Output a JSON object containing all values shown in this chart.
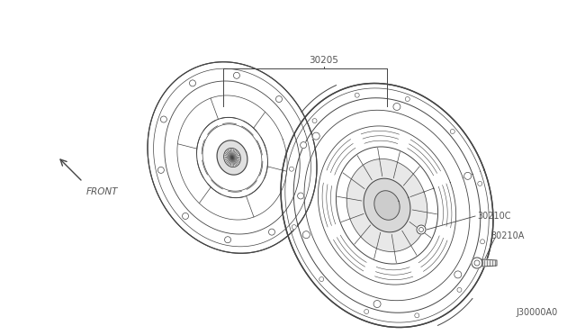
{
  "bg_color": "#ffffff",
  "line_color": "#444444",
  "label_color": "#555555",
  "diagram_code": "J30000A0",
  "front_text": "FRONT",
  "label_30205": "30205",
  "label_30210C": "30210C",
  "label_30210A": "30210A"
}
